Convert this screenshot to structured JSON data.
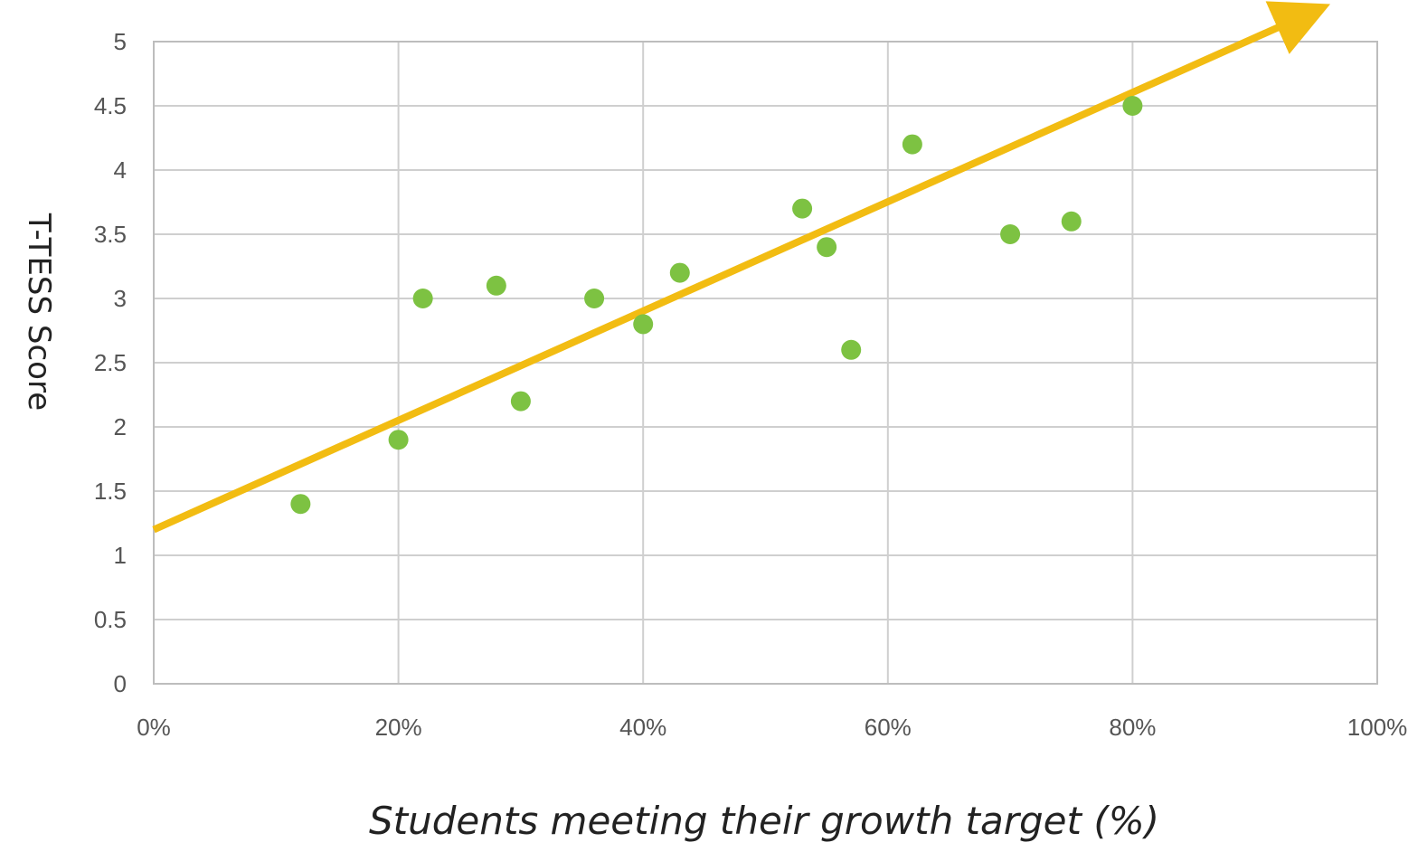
{
  "chart_data": {
    "type": "scatter",
    "title": "",
    "xlabel": "Students meeting their growth target (%)",
    "ylabel": "T-TESS Score",
    "xlim": [
      0,
      100
    ],
    "ylim": [
      0,
      5
    ],
    "x_ticks": [
      {
        "value": 0,
        "label": "0%"
      },
      {
        "value": 20,
        "label": "20%"
      },
      {
        "value": 40,
        "label": "40%"
      },
      {
        "value": 60,
        "label": "60%"
      },
      {
        "value": 80,
        "label": "80%"
      },
      {
        "value": 100,
        "label": "100%"
      }
    ],
    "y_ticks": [
      {
        "value": 0,
        "label": "0"
      },
      {
        "value": 0.5,
        "label": "0.5"
      },
      {
        "value": 1,
        "label": "1"
      },
      {
        "value": 1.5,
        "label": "1.5"
      },
      {
        "value": 2,
        "label": "2"
      },
      {
        "value": 2.5,
        "label": "2.5"
      },
      {
        "value": 3,
        "label": "3"
      },
      {
        "value": 3.5,
        "label": "3.5"
      },
      {
        "value": 4,
        "label": "4"
      },
      {
        "value": 4.5,
        "label": "4.5"
      },
      {
        "value": 5,
        "label": "5"
      }
    ],
    "grid": true,
    "legend": "none",
    "series": [
      {
        "marker_color": "#7dc242",
        "points": [
          {
            "x": 12,
            "y": 1.4
          },
          {
            "x": 20,
            "y": 1.9
          },
          {
            "x": 22,
            "y": 3.0
          },
          {
            "x": 28,
            "y": 3.1
          },
          {
            "x": 30,
            "y": 2.2
          },
          {
            "x": 36,
            "y": 3.0
          },
          {
            "x": 40,
            "y": 2.8
          },
          {
            "x": 43,
            "y": 3.2
          },
          {
            "x": 53,
            "y": 3.7
          },
          {
            "x": 55,
            "y": 3.4
          },
          {
            "x": 57,
            "y": 2.6
          },
          {
            "x": 62,
            "y": 4.2
          },
          {
            "x": 70,
            "y": 3.5
          },
          {
            "x": 75,
            "y": 3.6
          },
          {
            "x": 80,
            "y": 4.5
          }
        ]
      }
    ],
    "trend_line": {
      "color": "#f2bc12",
      "has_arrowhead": true,
      "start": {
        "x": 0,
        "y": 1.2
      },
      "end": {
        "x": 94,
        "y": 5.2
      }
    },
    "colors": {
      "grid": "#cfcfcf",
      "axis_frame": "#bdbdbd",
      "tick_text": "#555555",
      "title_text": "#222222"
    }
  }
}
